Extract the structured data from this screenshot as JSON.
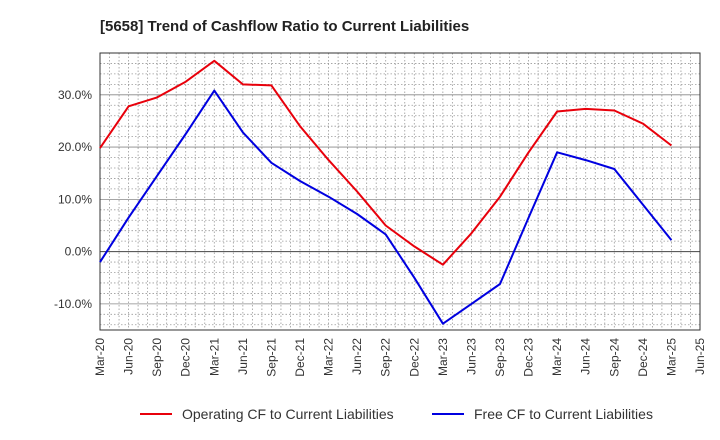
{
  "chart_data": {
    "type": "line",
    "title": "[5658]  Trend of Cashflow Ratio to Current Liabilities",
    "xlabel": "",
    "ylabel": "",
    "ylim": [
      -15,
      38
    ],
    "yticks": [
      -10,
      0,
      10,
      20,
      30
    ],
    "ytick_labels": [
      "-10.0%",
      "0.0%",
      "10.0%",
      "20.0%",
      "30.0%"
    ],
    "x": [
      "Mar-20",
      "Jun-20",
      "Sep-20",
      "Dec-20",
      "Mar-21",
      "Jun-21",
      "Sep-21",
      "Dec-21",
      "Mar-22",
      "Jun-22",
      "Sep-22",
      "Dec-22",
      "Mar-23",
      "Jun-23",
      "Sep-23",
      "Dec-23",
      "Mar-24",
      "Jun-24",
      "Sep-24",
      "Dec-24",
      "Mar-25",
      "Jun-25"
    ],
    "grid": true,
    "legend_position": "bottom",
    "series": [
      {
        "name": "Operating CF to Current Liabilities",
        "color": "#e8000b",
        "values": [
          19.8,
          27.8,
          29.5,
          32.5,
          36.5,
          32.0,
          31.8,
          24.0,
          17.5,
          11.5,
          5.0,
          1.0,
          -2.5,
          3.5,
          10.5,
          19.0,
          26.8,
          27.3,
          27.0,
          24.5,
          20.3,
          null
        ]
      },
      {
        "name": "Free CF to Current Liabilities",
        "color": "#0000e0",
        "values": [
          -2.0,
          6.5,
          14.5,
          22.5,
          30.8,
          22.8,
          17.0,
          13.5,
          10.5,
          7.2,
          3.3,
          -5.0,
          -13.8,
          -10.0,
          -6.2,
          6.5,
          19.0,
          17.5,
          15.8,
          9.0,
          2.2,
          null
        ]
      }
    ]
  }
}
